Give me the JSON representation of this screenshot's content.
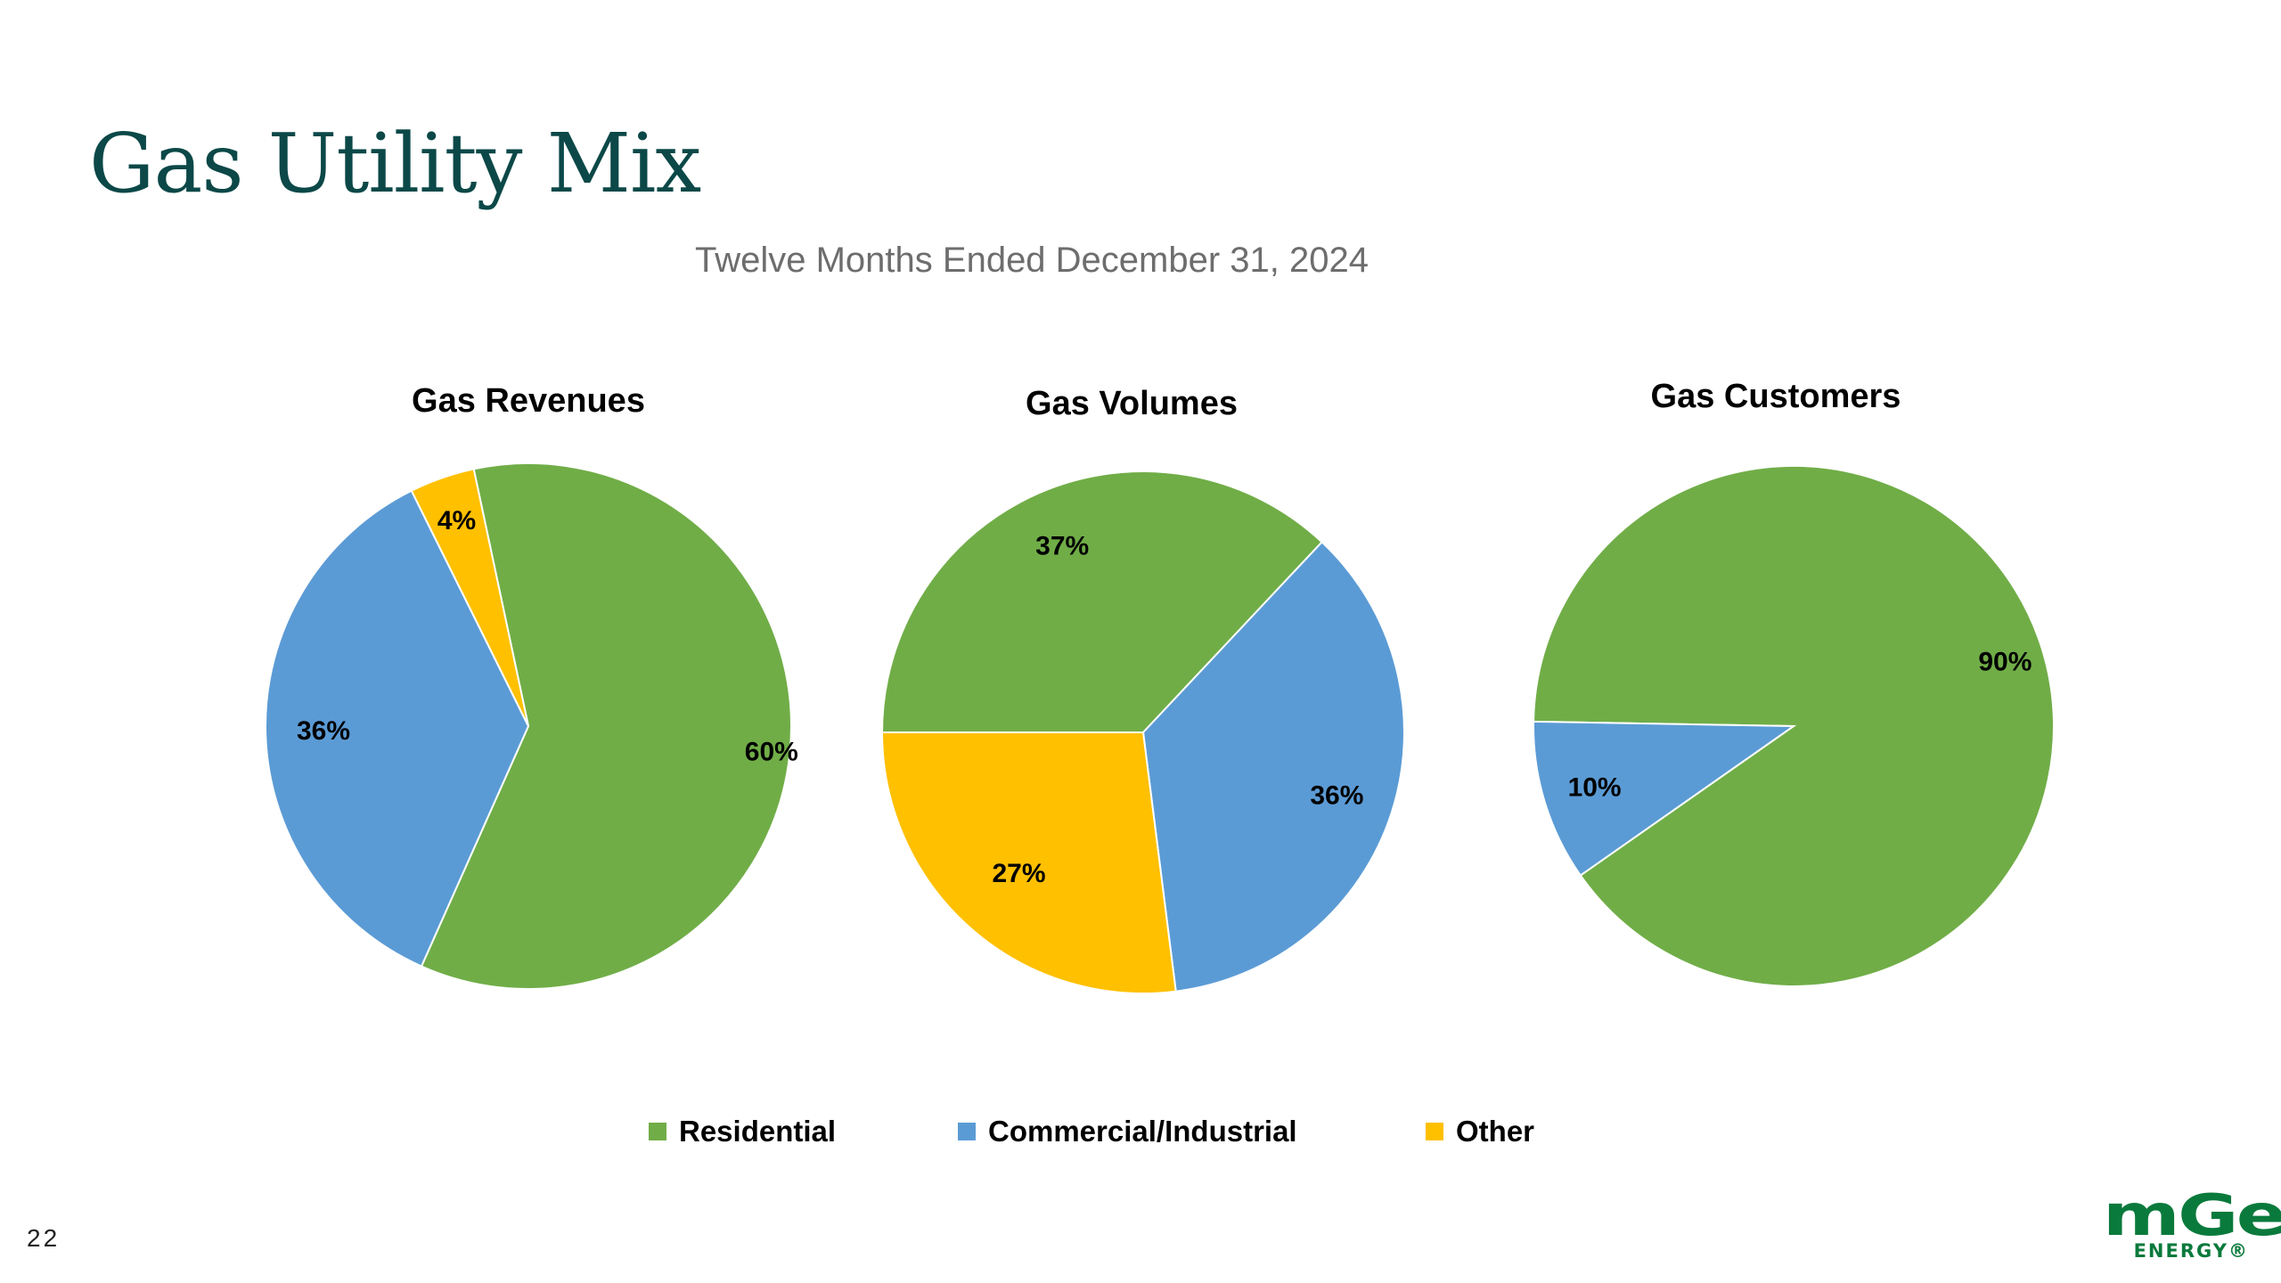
{
  "slide": {
    "title": "Gas Utility Mix",
    "subtitle": "Twelve Months Ended December 31, 2024",
    "page_number": "22"
  },
  "logo": {
    "mark": "mGe",
    "sub": "ENERGY®"
  },
  "colors": {
    "residential": "#70ad47",
    "commercial_industrial": "#5b9bd5",
    "other": "#ffc000",
    "title": "#0c4848"
  },
  "legend": [
    {
      "label": "Residential",
      "color": "#70ad47"
    },
    {
      "label": "Commercial/Industrial",
      "color": "#5b9bd5"
    },
    {
      "label": "Other",
      "color": "#ffc000"
    }
  ],
  "chart_data": [
    {
      "type": "pie",
      "title": "Gas Revenues",
      "categories": [
        "Residential",
        "Commercial/Industrial",
        "Other"
      ],
      "values": [
        60,
        36,
        4
      ],
      "labels": [
        "60%",
        "36%",
        "4%"
      ],
      "colors": [
        "#70ad47",
        "#5b9bd5",
        "#ffc000"
      ]
    },
    {
      "type": "pie",
      "title": "Gas Volumes",
      "categories": [
        "Residential",
        "Commercial/Industrial",
        "Other"
      ],
      "values": [
        37,
        36,
        27
      ],
      "labels": [
        "37%",
        "36%",
        "27%"
      ],
      "colors": [
        "#70ad47",
        "#5b9bd5",
        "#ffc000"
      ]
    },
    {
      "type": "pie",
      "title": "Gas Customers",
      "categories": [
        "Residential",
        "Commercial/Industrial"
      ],
      "values": [
        90,
        10
      ],
      "labels": [
        "90%",
        "10%"
      ],
      "colors": [
        "#70ad47",
        "#5b9bd5"
      ]
    }
  ]
}
